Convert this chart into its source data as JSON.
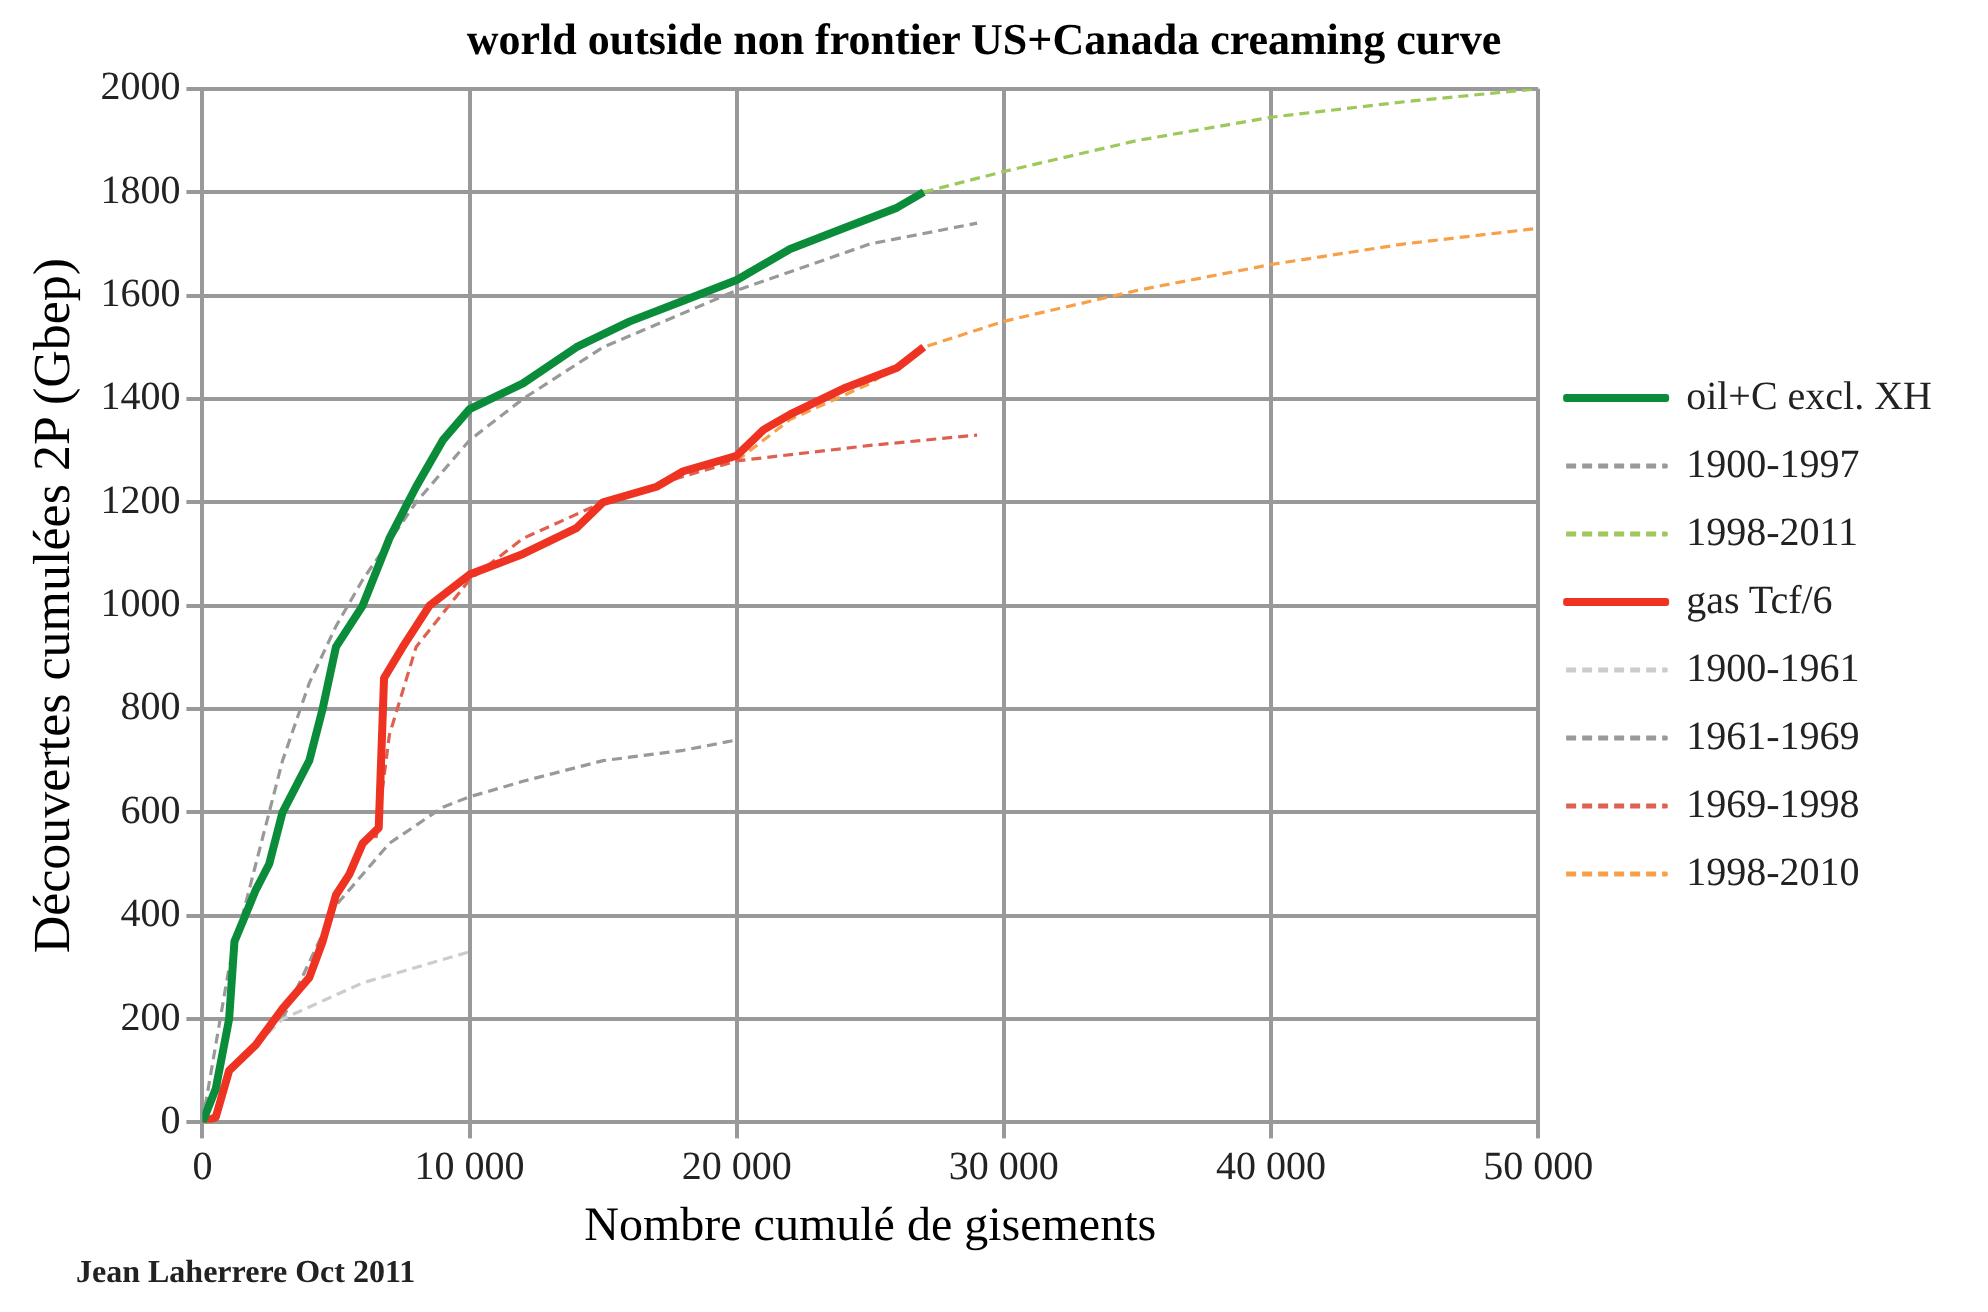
{
  "chart_data": {
    "type": "line",
    "title": "world outside non frontier US+Canada creaming curve",
    "xlabel": "Nombre cumulé de gisements",
    "ylabel": "Découvertes cumulées 2P (Gbep)",
    "annotations": [
      "Jean Laherrere Oct 2011"
    ],
    "xlim": [
      0,
      50000
    ],
    "xticks": [
      0,
      {
        "value": 10000,
        "label": "10 000"
      },
      {
        "value": 20000,
        "label": "20 000"
      },
      {
        "value": 30000,
        "label": "30 000"
      },
      {
        "value": 40000,
        "label": "40 000"
      },
      {
        "value": 50000,
        "label": "50 000"
      }
    ],
    "ylim": [
      0,
      2000
    ],
    "yticks": [
      0,
      200,
      400,
      600,
      800,
      1000,
      1200,
      1400,
      1600,
      1800,
      2000
    ],
    "grid": true,
    "legend": "right",
    "marker": "none",
    "series": [
      {
        "name": "oil+C excl. XH",
        "color": "#0b8c3a",
        "line_style": "solid",
        "x": [
          0,
          500,
          1000,
          1200,
          2000,
          2500,
          3000,
          4000,
          4500,
          5000,
          6000,
          7000,
          8000,
          9000,
          10000,
          12000,
          14000,
          16000,
          18000,
          20000,
          22000,
          24000,
          26000,
          27000
        ],
        "values": [
          0,
          65,
          200,
          350,
          450,
          500,
          600,
          700,
          800,
          920,
          1000,
          1130,
          1230,
          1320,
          1380,
          1430,
          1500,
          1550,
          1590,
          1630,
          1690,
          1730,
          1770,
          1800
        ]
      },
      {
        "name": "1900-1997",
        "color": "#999999",
        "line_style": "dashed",
        "x": [
          0,
          1000,
          2000,
          3000,
          4000,
          5000,
          6000,
          8000,
          10000,
          12000,
          15000,
          20000,
          25000,
          29000
        ],
        "values": [
          0,
          300,
          500,
          700,
          850,
          960,
          1050,
          1200,
          1320,
          1400,
          1500,
          1610,
          1700,
          1740
        ]
      },
      {
        "name": "1998-2011",
        "color": "#9dc85a",
        "line_style": "dashed",
        "x": [
          27000,
          30000,
          35000,
          40000,
          45000,
          50000
        ],
        "values": [
          1800,
          1840,
          1900,
          1945,
          1975,
          2000
        ]
      },
      {
        "name": "gas Tcf/6",
        "color": "#ee3322",
        "line_style": "solid",
        "x": [
          0,
          500,
          1000,
          2000,
          3000,
          4000,
          4500,
          5000,
          5500,
          6000,
          6600,
          6800,
          7500,
          8500,
          10000,
          12000,
          14000,
          15000,
          17000,
          18000,
          20000,
          21000,
          22000,
          24000,
          26000,
          27000
        ],
        "values": [
          0,
          10,
          100,
          150,
          220,
          280,
          350,
          440,
          480,
          540,
          570,
          860,
          920,
          1000,
          1060,
          1100,
          1150,
          1200,
          1230,
          1260,
          1290,
          1340,
          1370,
          1420,
          1460,
          1500
        ]
      },
      {
        "name": "1900-1961",
        "color": "#cccccc",
        "line_style": "dashed",
        "x": [
          0,
          1000,
          3000,
          6000,
          10000
        ],
        "values": [
          0,
          100,
          200,
          270,
          330
        ]
      },
      {
        "name": "1961-1969",
        "color": "#999999",
        "line_style": "dashed",
        "x": [
          3000,
          5000,
          7000,
          9000,
          10000,
          12000,
          15000,
          18000,
          20000
        ],
        "values": [
          200,
          420,
          540,
          610,
          630,
          660,
          700,
          720,
          740
        ]
      },
      {
        "name": "1969-1998",
        "color": "#e06050",
        "line_style": "dashed",
        "x": [
          6500,
          7000,
          8000,
          10000,
          12000,
          15000,
          18000,
          20000,
          25000,
          29000
        ],
        "values": [
          550,
          750,
          920,
          1050,
          1130,
          1200,
          1250,
          1280,
          1310,
          1330
        ]
      },
      {
        "name": "1998-2010",
        "color": "#f7a04a",
        "line_style": "dashed",
        "x": [
          20000,
          22000,
          25000,
          27000,
          30000,
          35000,
          40000,
          45000,
          50000
        ],
        "values": [
          1280,
          1360,
          1430,
          1500,
          1550,
          1610,
          1660,
          1700,
          1730
        ]
      }
    ]
  }
}
